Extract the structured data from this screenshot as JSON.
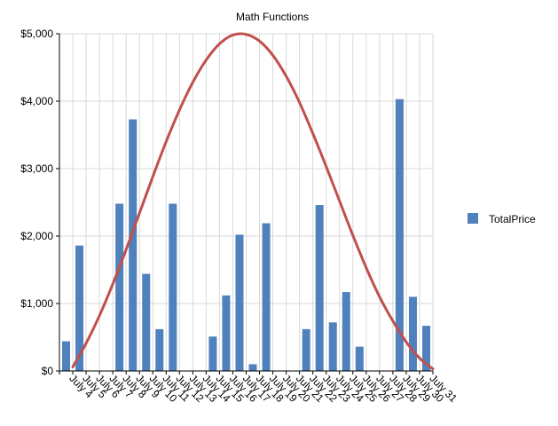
{
  "chart_data": {
    "type": "bar",
    "title": "Math Functions",
    "xlabel": "",
    "ylabel": "",
    "ylim": [
      0,
      5000
    ],
    "yticks": [
      0,
      1000,
      2000,
      3000,
      4000,
      5000
    ],
    "ytick_labels": [
      "$0",
      "$1,000",
      "$2,000",
      "$3,000",
      "$4,000",
      "$5,000"
    ],
    "grid": true,
    "legend_position": "right",
    "bar_color": "#4f81bd",
    "curve_color": "#c0504d",
    "categories": [
      "July 4",
      "July 5",
      "July 6",
      "July 7",
      "July 8",
      "July 9",
      "July 10",
      "July 11",
      "July 12",
      "July 13",
      "July 14",
      "July 15",
      "July 16",
      "July 17",
      "July 18",
      "July 19",
      "July 20",
      "July 21",
      "July 22",
      "July 23",
      "July 24",
      "July 25",
      "July 26",
      "July 27",
      "July 28",
      "July 29",
      "July 30",
      "July 31"
    ],
    "series": [
      {
        "name": "TotalPrice",
        "kind": "bar",
        "values": [
          440,
          1860,
          0,
          0,
          2480,
          3730,
          1440,
          620,
          2480,
          0,
          0,
          510,
          1120,
          2020,
          100,
          2190,
          0,
          0,
          620,
          2460,
          720,
          1170,
          360,
          0,
          0,
          4030,
          1100,
          670
        ]
      },
      {
        "kind": "line",
        "x": [
          1.0,
          2.0,
          3.0,
          4.0,
          5.0,
          6.0,
          7.0,
          8.0,
          9.0,
          10.0,
          11.0,
          12.0,
          13.0,
          14.0,
          15.0,
          16.0,
          17.0,
          18.0,
          19.0,
          20.0,
          21.0,
          22.0,
          23.0,
          24.0,
          25.0,
          26.0,
          27.0,
          28.0
        ],
        "values": [
          60,
          410,
          820,
          1290,
          1800,
          2340,
          2880,
          3400,
          3870,
          4280,
          4610,
          4850,
          4980,
          4990,
          4890,
          4680,
          4370,
          3980,
          3520,
          3030,
          2520,
          2010,
          1530,
          1100,
          740,
          430,
          190,
          30
        ]
      }
    ]
  }
}
